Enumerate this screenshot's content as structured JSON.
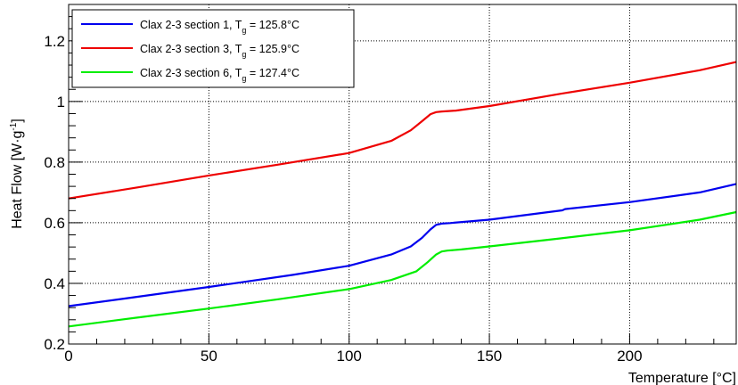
{
  "chart_data": {
    "type": "line",
    "xlabel": "Temperature [°C]",
    "ylabel": "Heat Flow [W·g",
    "ylabel_sup": "-1",
    "ylabel_close": "]",
    "xlim": [
      0,
      238
    ],
    "ylim": [
      0.2,
      1.32
    ],
    "grid": true,
    "legend_position": "top-left",
    "x_ticks": [
      0,
      50,
      100,
      150,
      200
    ],
    "x_tick_labels": [
      "0",
      "50",
      "100",
      "150",
      "200"
    ],
    "y_ticks": [
      0.2,
      0.4,
      0.6,
      0.8,
      1.0,
      1.2
    ],
    "y_tick_labels": [
      "0.2",
      "0.4",
      "0.6",
      "0.8",
      "1",
      "1.2"
    ],
    "series": [
      {
        "name": "Clax 2-3 section 1, T",
        "name_sub": "g",
        "name_suffix": " = 125.8°C",
        "color": "#0000ee",
        "x": [
          0,
          20,
          50,
          80,
          100,
          115,
          122,
          126,
          129,
          131,
          133,
          136,
          150,
          176,
          177,
          200,
          225,
          238
        ],
        "y": [
          0.325,
          0.35,
          0.388,
          0.428,
          0.458,
          0.495,
          0.522,
          0.55,
          0.578,
          0.593,
          0.597,
          0.599,
          0.61,
          0.641,
          0.645,
          0.668,
          0.7,
          0.728
        ]
      },
      {
        "name": "Clax 2-3 section 3, T",
        "name_sub": "g",
        "name_suffix": " = 125.9°C",
        "color": "#ee0000",
        "x": [
          0,
          25,
          50,
          75,
          100,
          115,
          122,
          126,
          129,
          131,
          133,
          138,
          150,
          175,
          200,
          225,
          238
        ],
        "y": [
          0.68,
          0.717,
          0.756,
          0.792,
          0.83,
          0.87,
          0.905,
          0.935,
          0.958,
          0.965,
          0.967,
          0.97,
          0.985,
          1.025,
          1.062,
          1.103,
          1.13
        ]
      },
      {
        "name": "Clax 2-3 section 6, T",
        "name_sub": "g",
        "name_suffix": " = 127.4°C",
        "color": "#00ee00",
        "x": [
          0,
          25,
          50,
          75,
          100,
          115,
          124,
          128,
          131,
          133,
          135,
          140,
          150,
          175,
          200,
          225,
          238
        ],
        "y": [
          0.258,
          0.288,
          0.317,
          0.348,
          0.381,
          0.411,
          0.44,
          0.47,
          0.495,
          0.505,
          0.508,
          0.512,
          0.522,
          0.548,
          0.575,
          0.61,
          0.635
        ]
      }
    ]
  }
}
